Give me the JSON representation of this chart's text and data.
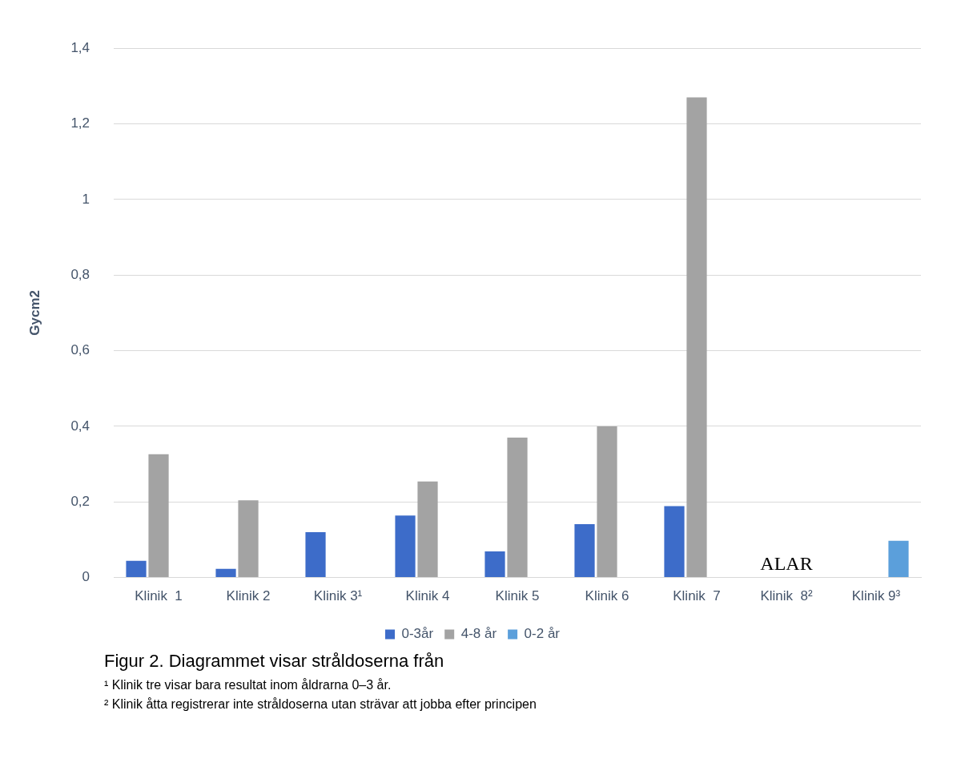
{
  "chart_data": {
    "type": "bar",
    "ylabel": "Gycm2",
    "categories": [
      "Klinik  1",
      "Klinik 2",
      "Klinik 3¹",
      "Klinik 4",
      "Klinik 5",
      "Klinik 6",
      "Klinik  7",
      "Klinik  8²",
      "Klinik 9³"
    ],
    "series": [
      {
        "name": "0-3år",
        "color": "#3d6cc9",
        "values": [
          0.044,
          0.023,
          0.12,
          0.164,
          0.069,
          0.141,
          0.189,
          null,
          null
        ]
      },
      {
        "name": "4-8 år",
        "color": "#a3a3a3",
        "values": [
          0.326,
          0.204,
          null,
          0.254,
          0.37,
          0.4,
          1.27,
          null,
          null
        ]
      },
      {
        "name": "0-2 år",
        "color": "#5b9fdb",
        "values": [
          null,
          null,
          null,
          null,
          null,
          null,
          null,
          null,
          0.097
        ]
      }
    ],
    "ylim": [
      0,
      1.4
    ],
    "yticks": [
      {
        "value": 0,
        "label": "0"
      },
      {
        "value": 0.2,
        "label": "0,2"
      },
      {
        "value": 0.4,
        "label": "0,4"
      },
      {
        "value": 0.6,
        "label": "0,6"
      },
      {
        "value": 0.8,
        "label": "0,8"
      },
      {
        "value": 1,
        "label": "1"
      },
      {
        "value": 1.2,
        "label": "1,2"
      },
      {
        "value": 1.4,
        "label": "1,4"
      }
    ],
    "grid": "y",
    "legend": "bottom",
    "annotations": [
      "ALAR",
      "Figur 2. Diagrammet visar stråldoserna från",
      "¹ Klinik tre visar bara resultat inom åldrarna 0–3 år.",
      "² Klinik åtta registrerar inte stråldoserna utan strävar att jobba efter principen"
    ]
  }
}
